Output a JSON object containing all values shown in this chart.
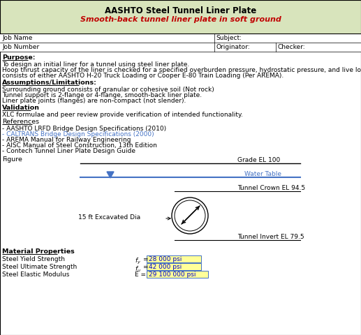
{
  "title": "AASHTO Steel Tunnel Liner Plate",
  "subtitle": "Smooth-back tunnel liner plate in soft ground",
  "bg_color": "#d8e4bc",
  "white_bg": "#ffffff",
  "title_color": "#000000",
  "subtitle_color": "#c00000",
  "blue_text": "#4472c4",
  "input_bg": "#ffff99",
  "input_border": "#4472c4",
  "input_text": "#0000cd",
  "purpose_line1": "To design an initial liner for a tunnel using steel liner plate.",
  "purpose_line2": "Hoop thrust capacity of the liner is checked for a specified overburden pressure, hydrostatic pressure, and live load pressure, which",
  "purpose_line3": "consists of either AASHTO H-20 Truck Loading or Cooper E-80 Train Loading (Per AREMA).",
  "assump_line1": "Surrounding ground consists of granular or cohesive soil (Not rock)",
  "assump_line2": "Tunnel support is 2-flange or 4-flange, smooth-back liner plate.",
  "assump_line3": "Liner plate joints (flanges) are non-compact (not slender).",
  "validation_text": "XLC formulae and peer review provide verification of intended functionality.",
  "references": [
    "- AASHTO LRFD Bridge Design Specifications (2010)",
    "- CALTRANS Bridge Design Specifications (2000)",
    "- AREMA Manual for Railway Engineering",
    "- AISC Manual of Steel Construction, 13th Edition",
    "- Contech Tunnel Liner Plate Design Guide"
  ],
  "ref_blue_idx": 1,
  "grade_el": "Grade EL 100",
  "water_table": "Water Table",
  "tunnel_crown": "Tunnel Crown EL 94.5",
  "tunnel_invert": "Tunnel Invert EL 79.5",
  "excavated_dia": "15 ft Excavated Dia",
  "mat_fy_val": "28 000 psi",
  "mat_fu_val": "42 000 psi",
  "mat_E_val": "29 100 000 psi"
}
